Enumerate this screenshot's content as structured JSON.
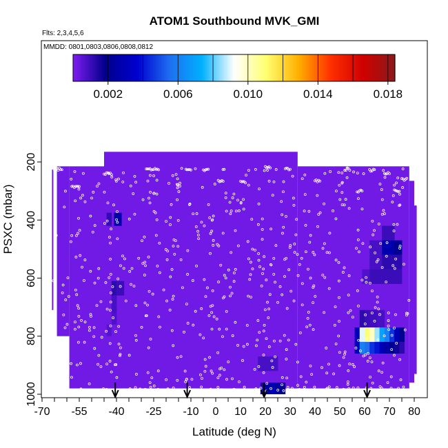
{
  "chart_data": {
    "type": "heatmap",
    "title": "ATOM1 Southbound MVK_GMI",
    "notes": [
      "Flts: 2,3,4,5,6",
      "MMDD: 0801,0803,0806,0808,0812"
    ],
    "xlabel": "Latitude (deg N)",
    "ylabel": "PSXC (mbar)",
    "xlim": [
      -70,
      85
    ],
    "ylim": [
      1000,
      100
    ],
    "xticks": [
      -70,
      -55,
      -40,
      -25,
      -10,
      0,
      10,
      20,
      30,
      40,
      50,
      60,
      70,
      80
    ],
    "xtick_labels": [
      "-70",
      "-55",
      "-40",
      "-25",
      "-10",
      "0",
      "10",
      "20",
      "30",
      "40",
      "50",
      "60",
      "70",
      "80"
    ],
    "yticks": [
      200,
      400,
      600,
      800,
      1000
    ],
    "ytick_labels": [
      "200",
      "400",
      "600",
      "800",
      "1000"
    ],
    "colorbar": {
      "range": [
        0,
        0.0184
      ],
      "ticks": [
        0.002,
        0.006,
        0.01,
        0.014,
        0.018
      ],
      "tick_labels": [
        "0.002",
        "0.006",
        "0.010",
        "0.014",
        "0.018"
      ],
      "boundaries": [
        0,
        0.002,
        0.004,
        0.006,
        0.008,
        0.01,
        0.012,
        0.014,
        0.016,
        0.018
      ],
      "colors": [
        "#7f1cf0",
        "#00008b",
        "#0000d0",
        "#1e6ff0",
        "#00b0ff",
        "#ffffff",
        "#ffff70",
        "#ffb000",
        "#ff3000",
        "#d00000",
        "#8b1a1a"
      ]
    },
    "background_value": 0.0002,
    "domain_blocks": [
      {
        "lat": [
          -66,
          -66
        ],
        "p": [
          225,
          710
        ]
      },
      {
        "lat": [
          -64,
          -59
        ],
        "p": [
          215,
          800
        ]
      },
      {
        "lat": [
          -59,
          -45
        ],
        "p": [
          215,
          980
        ]
      },
      {
        "lat": [
          -45,
          33
        ],
        "p": [
          165,
          980
        ]
      },
      {
        "lat": [
          33,
          78
        ],
        "p": [
          215,
          980
        ]
      },
      {
        "lat": [
          78,
          80
        ],
        "p": [
          265,
          960
        ]
      },
      {
        "lat": [
          80,
          81
        ],
        "p": [
          350,
          930
        ]
      }
    ],
    "cells": [
      {
        "lat": [
          -41,
          -38
        ],
        "p": [
          375,
          420
        ],
        "value": 0.0025
      },
      {
        "lat": [
          -44,
          -42
        ],
        "p": [
          375,
          420
        ],
        "value": 0.0011
      },
      {
        "lat": [
          -42,
          -40
        ],
        "p": [
          610,
          660
        ],
        "value": 0.0012
      },
      {
        "lat": [
          -40,
          -37
        ],
        "p": [
          610,
          660
        ],
        "value": 0.001
      },
      {
        "lat": [
          -42,
          -40
        ],
        "p": [
          660,
          720
        ],
        "value": 0.0008
      },
      {
        "lat": [
          -42,
          -40
        ],
        "p": [
          720,
          760
        ],
        "value": 0.0007
      },
      {
        "lat": [
          -44,
          -42
        ],
        "p": [
          760,
          800
        ],
        "value": 0.0006
      },
      {
        "lat": [
          17,
          25
        ],
        "p": [
          870,
          920
        ],
        "value": 0.0008
      },
      {
        "lat": [
          18,
          20
        ],
        "p": [
          960,
          1000
        ],
        "value": 0.0015
      },
      {
        "lat": [
          20,
          22
        ],
        "p": [
          960,
          1000
        ],
        "value": 0.0025
      },
      {
        "lat": [
          22,
          24
        ],
        "p": [
          960,
          1000
        ],
        "value": 0.003
      },
      {
        "lat": [
          24,
          26
        ],
        "p": [
          960,
          1000
        ],
        "value": 0.0024
      },
      {
        "lat": [
          26,
          28
        ],
        "p": [
          960,
          1000
        ],
        "value": 0.0018
      },
      {
        "lat": [
          67,
          72
        ],
        "p": [
          420,
          470
        ],
        "value": 0.001
      },
      {
        "lat": [
          62,
          67
        ],
        "p": [
          470,
          520
        ],
        "value": 0.0008
      },
      {
        "lat": [
          67,
          72
        ],
        "p": [
          470,
          520
        ],
        "value": 0.0028
      },
      {
        "lat": [
          72,
          75
        ],
        "p": [
          470,
          520
        ],
        "value": 0.002
      },
      {
        "lat": [
          62,
          67
        ],
        "p": [
          520,
          570
        ],
        "value": 0.0008
      },
      {
        "lat": [
          67,
          75
        ],
        "p": [
          520,
          570
        ],
        "value": 0.0012
      },
      {
        "lat": [
          59,
          62
        ],
        "p": [
          570,
          620
        ],
        "value": 0.0007
      },
      {
        "lat": [
          62,
          75
        ],
        "p": [
          570,
          620
        ],
        "value": 0.001
      },
      {
        "lat": [
          58,
          60
        ],
        "p": [
          710,
          770
        ],
        "value": 0.0012
      },
      {
        "lat": [
          60,
          62
        ],
        "p": [
          710,
          770
        ],
        "value": 0.001
      },
      {
        "lat": [
          62,
          65
        ],
        "p": [
          710,
          770
        ],
        "value": 0.0009
      },
      {
        "lat": [
          65,
          68
        ],
        "p": [
          710,
          770
        ],
        "value": 0.0008
      },
      {
        "lat": [
          56,
          58
        ],
        "p": [
          770,
          820
        ],
        "value": 0.003
      },
      {
        "lat": [
          58,
          60
        ],
        "p": [
          770,
          820
        ],
        "value": 0.009
      },
      {
        "lat": [
          60,
          62
        ],
        "p": [
          770,
          820
        ],
        "value": 0.011
      },
      {
        "lat": [
          62,
          64
        ],
        "p": [
          770,
          820
        ],
        "value": 0.01
      },
      {
        "lat": [
          64,
          66
        ],
        "p": [
          770,
          820
        ],
        "value": 0.0085
      },
      {
        "lat": [
          66,
          68
        ],
        "p": [
          770,
          820
        ],
        "value": 0.007
      },
      {
        "lat": [
          68,
          70
        ],
        "p": [
          770,
          820
        ],
        "value": 0.006
      },
      {
        "lat": [
          70,
          72
        ],
        "p": [
          770,
          820
        ],
        "value": 0.0045
      },
      {
        "lat": [
          72,
          74
        ],
        "p": [
          770,
          820
        ],
        "value": 0.003
      },
      {
        "lat": [
          74,
          76
        ],
        "p": [
          770,
          820
        ],
        "value": 0.002
      },
      {
        "lat": [
          56,
          58
        ],
        "p": [
          820,
          860
        ],
        "value": 0.003
      },
      {
        "lat": [
          58,
          60
        ],
        "p": [
          820,
          860
        ],
        "value": 0.006
      },
      {
        "lat": [
          60,
          62
        ],
        "p": [
          820,
          860
        ],
        "value": 0.0055
      },
      {
        "lat": [
          62,
          64
        ],
        "p": [
          820,
          860
        ],
        "value": 0.0045
      },
      {
        "lat": [
          64,
          66
        ],
        "p": [
          820,
          860
        ],
        "value": 0.004
      },
      {
        "lat": [
          66,
          68
        ],
        "p": [
          820,
          860
        ],
        "value": 0.003
      },
      {
        "lat": [
          68,
          70
        ],
        "p": [
          820,
          860
        ],
        "value": 0.0025
      },
      {
        "lat": [
          70,
          72
        ],
        "p": [
          820,
          860
        ],
        "value": 0.002
      },
      {
        "lat": [
          72,
          74
        ],
        "p": [
          820,
          860
        ],
        "value": 0.0016
      },
      {
        "lat": [
          74,
          76
        ],
        "p": [
          820,
          860
        ],
        "value": 0.0012
      }
    ],
    "arrows_lat": [
      -40.5,
      -11.5,
      19.5,
      61
    ]
  }
}
